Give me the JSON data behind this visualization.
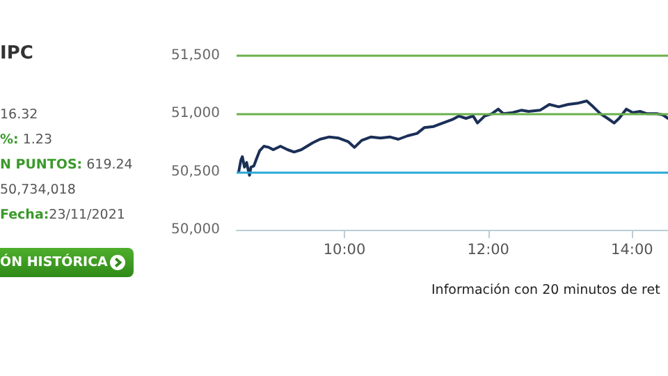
{
  "chart_data": [
    {
      "type": "other",
      "title": "IPC",
      "annotations": [
        "16.32",
        "%: 1.23",
        "N PUNTOS: 619.24",
        "50,734,018",
        "Fecha:23/11/2021",
        "ÓN HISTÓRICA"
      ]
    },
    {
      "type": "line",
      "color": "#1b2f57",
      "marker": "none",
      "x": [
        8.53,
        8.56,
        8.58,
        8.61,
        8.64,
        8.66,
        8.68,
        8.7,
        8.74,
        8.77,
        8.82,
        8.88,
        8.95,
        9.01,
        9.11,
        9.21,
        9.3,
        9.4,
        9.48,
        9.56,
        9.66,
        9.79,
        9.92,
        10.05,
        10.14,
        10.24,
        10.37,
        10.5,
        10.63,
        10.75,
        10.88,
        11.01,
        11.11,
        11.24,
        11.37,
        11.5,
        11.59,
        11.69,
        11.79,
        11.85,
        11.95,
        12.05,
        12.14,
        12.21,
        12.34,
        12.46,
        12.56,
        12.72,
        12.85,
        12.98,
        13.11,
        13.24,
        13.37,
        13.46,
        13.56,
        13.66,
        13.75,
        13.82,
        13.92,
        14.01,
        14.11,
        14.21,
        14.34,
        14.43,
        14.5
      ],
      "values": [
        50500,
        50600,
        50630,
        50540,
        50580,
        50520,
        50470,
        50540,
        50550,
        50600,
        50680,
        50720,
        50710,
        50690,
        50720,
        50690,
        50670,
        50690,
        50720,
        50750,
        50780,
        50800,
        50790,
        50760,
        50710,
        50770,
        50800,
        50790,
        50800,
        50780,
        50810,
        50830,
        50880,
        50890,
        50920,
        50950,
        50980,
        50960,
        50980,
        50920,
        50980,
        51000,
        51040,
        51000,
        51010,
        51030,
        51020,
        51030,
        51080,
        51060,
        51080,
        51090,
        51110,
        51060,
        51000,
        50960,
        50920,
        50960,
        51040,
        51010,
        51020,
        51000,
        51000,
        50990,
        50960
      ],
      "xlim": [
        8.5,
        14.5
      ],
      "xticks": [
        {
          "value": 10,
          "label": "10:00"
        },
        {
          "value": 12,
          "label": "12:00"
        },
        {
          "value": 14,
          "label": "14:00"
        }
      ],
      "ylim": [
        50000,
        51500
      ],
      "yticks": [
        {
          "value": 50000,
          "label": "50,000"
        },
        {
          "value": 50500,
          "label": "50,500"
        },
        {
          "value": 51000,
          "label": "51,000"
        },
        {
          "value": 51500,
          "label": "51,500"
        }
      ],
      "ref_lines": [
        {
          "axis": "y",
          "value": 50500,
          "color": "#29a8d6"
        },
        {
          "axis": "y",
          "value": 51000,
          "color": "#6ab04c"
        },
        {
          "axis": "y",
          "value": 51500,
          "color": "#6ab04c"
        }
      ],
      "annotations": [
        "Información con 20 minutos de ret"
      ]
    }
  ]
}
